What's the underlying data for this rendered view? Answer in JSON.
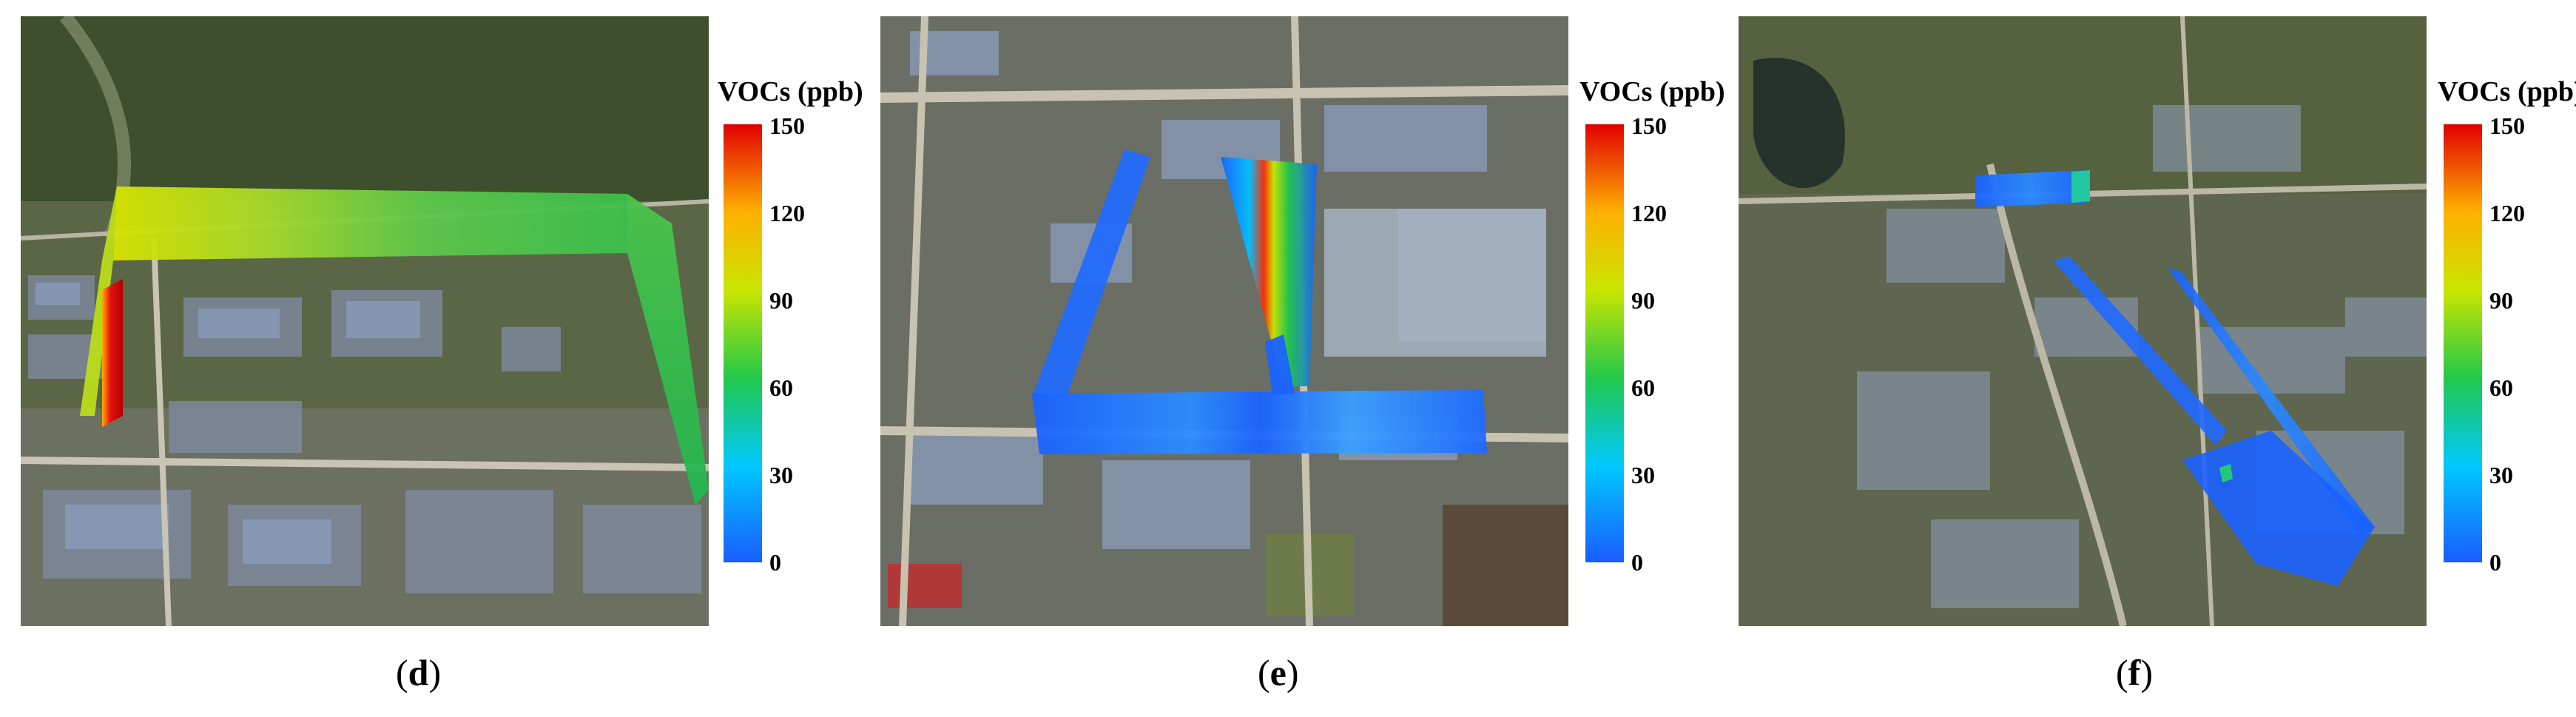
{
  "panels": [
    {
      "id": "d",
      "caption": "d",
      "colorbar_title": "VOCs (ppb)",
      "ticks": [
        "150",
        "120",
        "90",
        "60",
        "30",
        "0"
      ]
    },
    {
      "id": "e",
      "caption": "e",
      "colorbar_title": "VOCs (ppb)",
      "ticks": [
        "150",
        "120",
        "90",
        "60",
        "30",
        "0"
      ]
    },
    {
      "id": "f",
      "caption": "f",
      "colorbar_title": "VOCs (ppb)",
      "ticks": [
        "150",
        "120",
        "90",
        "60",
        "30",
        "0"
      ]
    }
  ],
  "colorbar": {
    "min": 0,
    "max": 150,
    "colors": [
      "#1a5cff",
      "#00c8ff",
      "#21c84a",
      "#c8e600",
      "#ffb000",
      "#e00000"
    ]
  }
}
